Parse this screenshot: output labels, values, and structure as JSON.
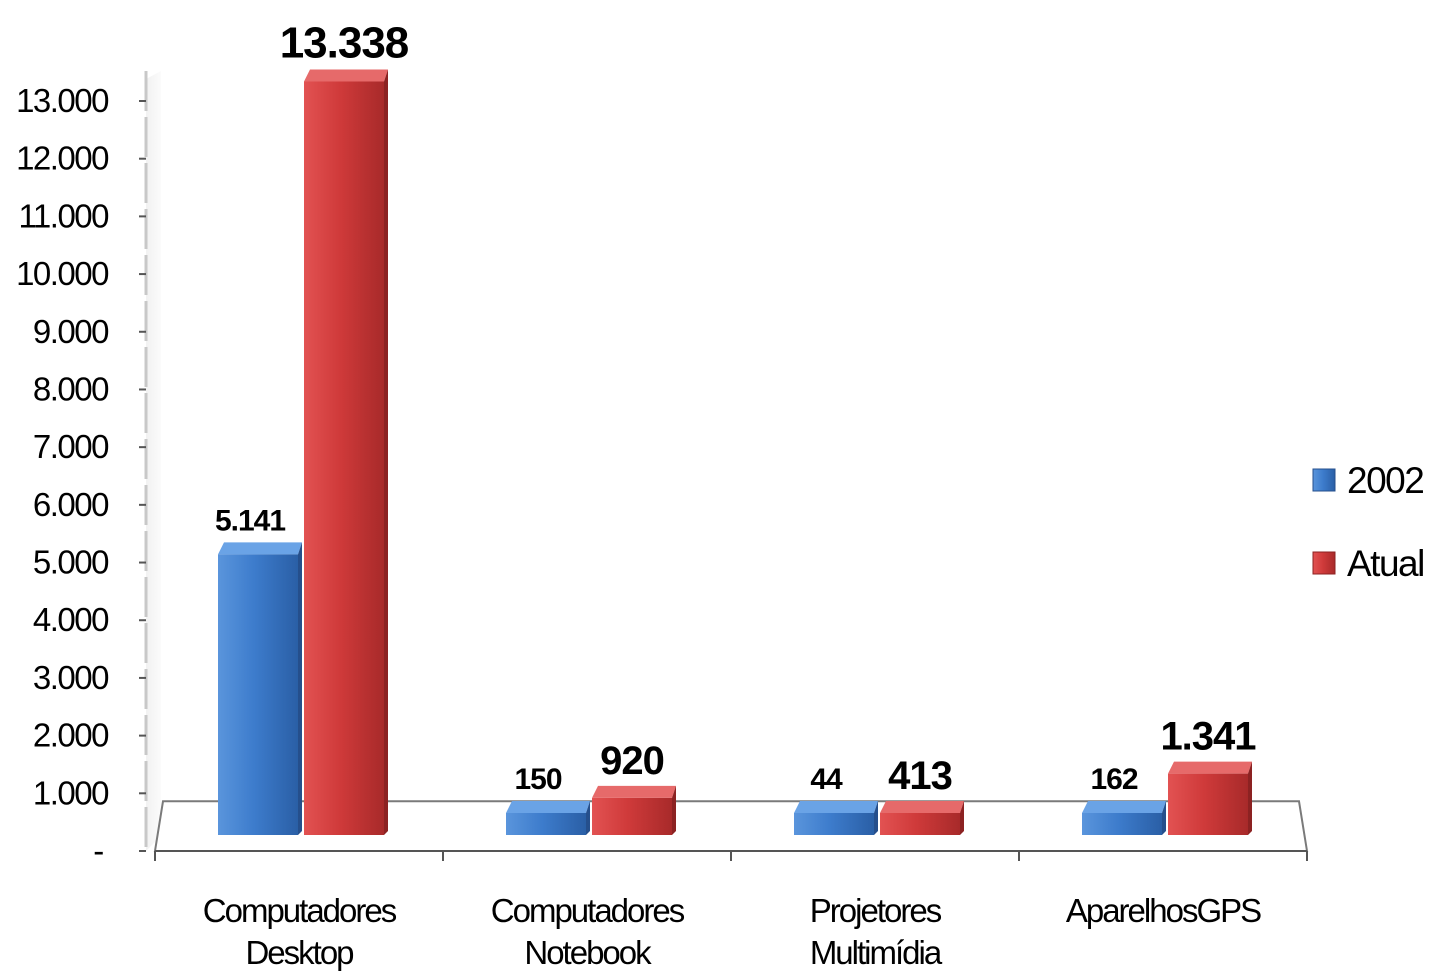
{
  "chart_data": {
    "type": "bar",
    "categories": [
      [
        "Computadores",
        "Desktop"
      ],
      [
        "Computadores",
        "Notebook"
      ],
      [
        "Projetores",
        "Multimídia"
      ],
      [
        "AparelhosGPS"
      ]
    ],
    "series": [
      {
        "name": "2002",
        "values": [
          5141,
          150,
          44,
          162
        ],
        "labels": [
          "5.141",
          "150",
          "44",
          "162"
        ],
        "color": "#3a78c8"
      },
      {
        "name": "Atual",
        "values": [
          13338,
          920,
          413,
          1341
        ],
        "labels": [
          "13.338",
          "920",
          "413",
          "1.341"
        ],
        "color": "#c93333"
      }
    ],
    "y_ticks": [
      {
        "value": 0,
        "label": "-"
      },
      {
        "value": 1000,
        "label": "1.000"
      },
      {
        "value": 2000,
        "label": "2.000"
      },
      {
        "value": 3000,
        "label": "3.000"
      },
      {
        "value": 4000,
        "label": "4.000"
      },
      {
        "value": 5000,
        "label": "5.000"
      },
      {
        "value": 6000,
        "label": "6.000"
      },
      {
        "value": 7000,
        "label": "7.000"
      },
      {
        "value": 8000,
        "label": "8.000"
      },
      {
        "value": 9000,
        "label": "9.000"
      },
      {
        "value": 10000,
        "label": "10.000"
      },
      {
        "value": 11000,
        "label": "11.000"
      },
      {
        "value": 12000,
        "label": "12.000"
      },
      {
        "value": 13000,
        "label": "13.000"
      }
    ],
    "ylim": [
      0,
      13000
    ],
    "title": "",
    "xlabel": "",
    "ylabel": "",
    "legend_position": "right",
    "grid": false,
    "style": "3d-column"
  }
}
